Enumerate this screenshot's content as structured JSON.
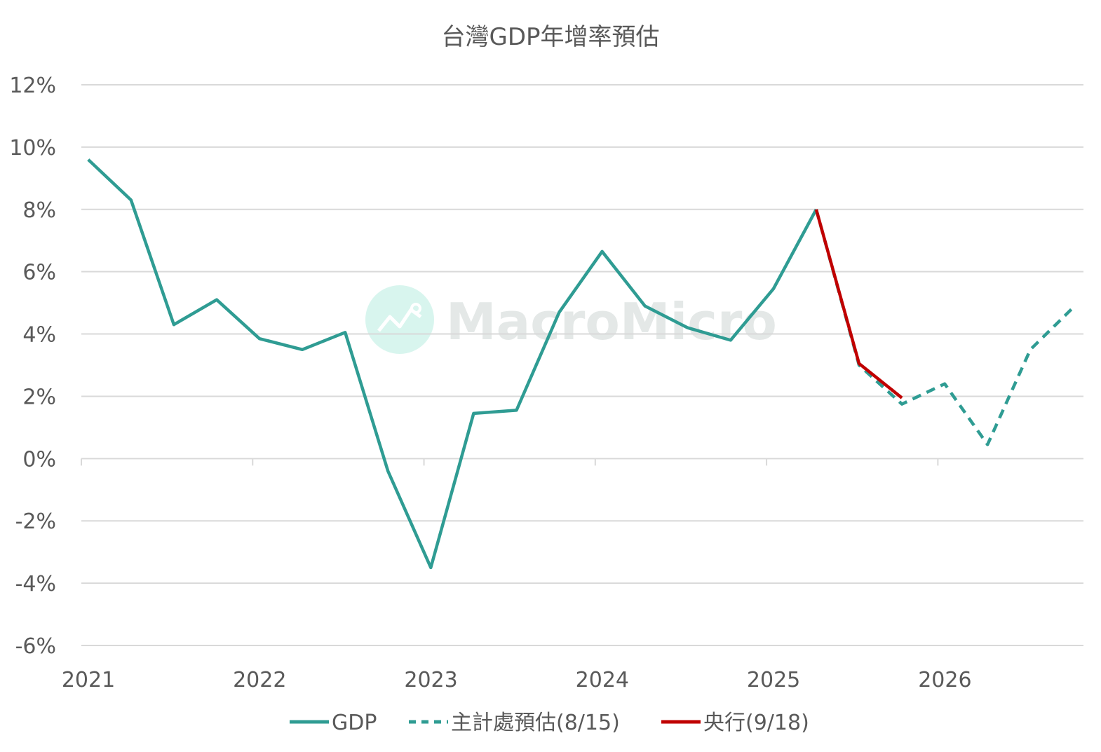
{
  "chart_data": {
    "type": "line",
    "title": "台灣GDP年增率預估",
    "xlabel": "",
    "ylabel": "",
    "x_tick_labels": [
      "2021",
      "2022",
      "2023",
      "2024",
      "2025",
      "2026"
    ],
    "y_tick_labels": [
      "12%",
      "10%",
      "8%",
      "6%",
      "4%",
      "2%",
      "0%",
      "-2%",
      "-4%",
      "-6%"
    ],
    "ylim": [
      -6,
      12
    ],
    "xlim": [
      2021.0,
      2026.85
    ],
    "grid": true,
    "legend_position": "bottom",
    "series": [
      {
        "name": "GDP",
        "color": "#2f9c93",
        "style": "solid",
        "x": [
          2021.04,
          2021.29,
          2021.54,
          2021.79,
          2022.04,
          2022.29,
          2022.54,
          2022.79,
          2023.04,
          2023.29,
          2023.54,
          2023.79,
          2024.04,
          2024.29,
          2024.54,
          2024.79,
          2025.04,
          2025.29
        ],
        "y": [
          9.6,
          8.3,
          4.3,
          5.1,
          3.85,
          3.5,
          4.05,
          -0.4,
          -3.5,
          1.45,
          1.55,
          4.7,
          6.65,
          4.9,
          4.2,
          3.8,
          5.45,
          8.0
        ]
      },
      {
        "name": "主計處預估(8/15)",
        "color": "#2f9c93",
        "style": "dashed",
        "x": [
          2025.29,
          2025.54,
          2025.79,
          2026.04,
          2026.29,
          2026.54,
          2026.79
        ],
        "y": [
          8.0,
          3.0,
          1.75,
          2.4,
          0.45,
          3.5,
          4.85
        ]
      },
      {
        "name": "央行(9/18)",
        "color": "#c00000",
        "style": "solid",
        "x": [
          2025.29,
          2025.54,
          2025.79
        ],
        "y": [
          8.0,
          3.05,
          1.95
        ]
      }
    ]
  },
  "watermark": {
    "text": "MacroMicro",
    "icon": "chart-logo-icon"
  },
  "colors": {
    "grid": "#d9d9d9",
    "axis_text": "#595959",
    "gdp": "#2f9c93",
    "cbc": "#c00000"
  }
}
